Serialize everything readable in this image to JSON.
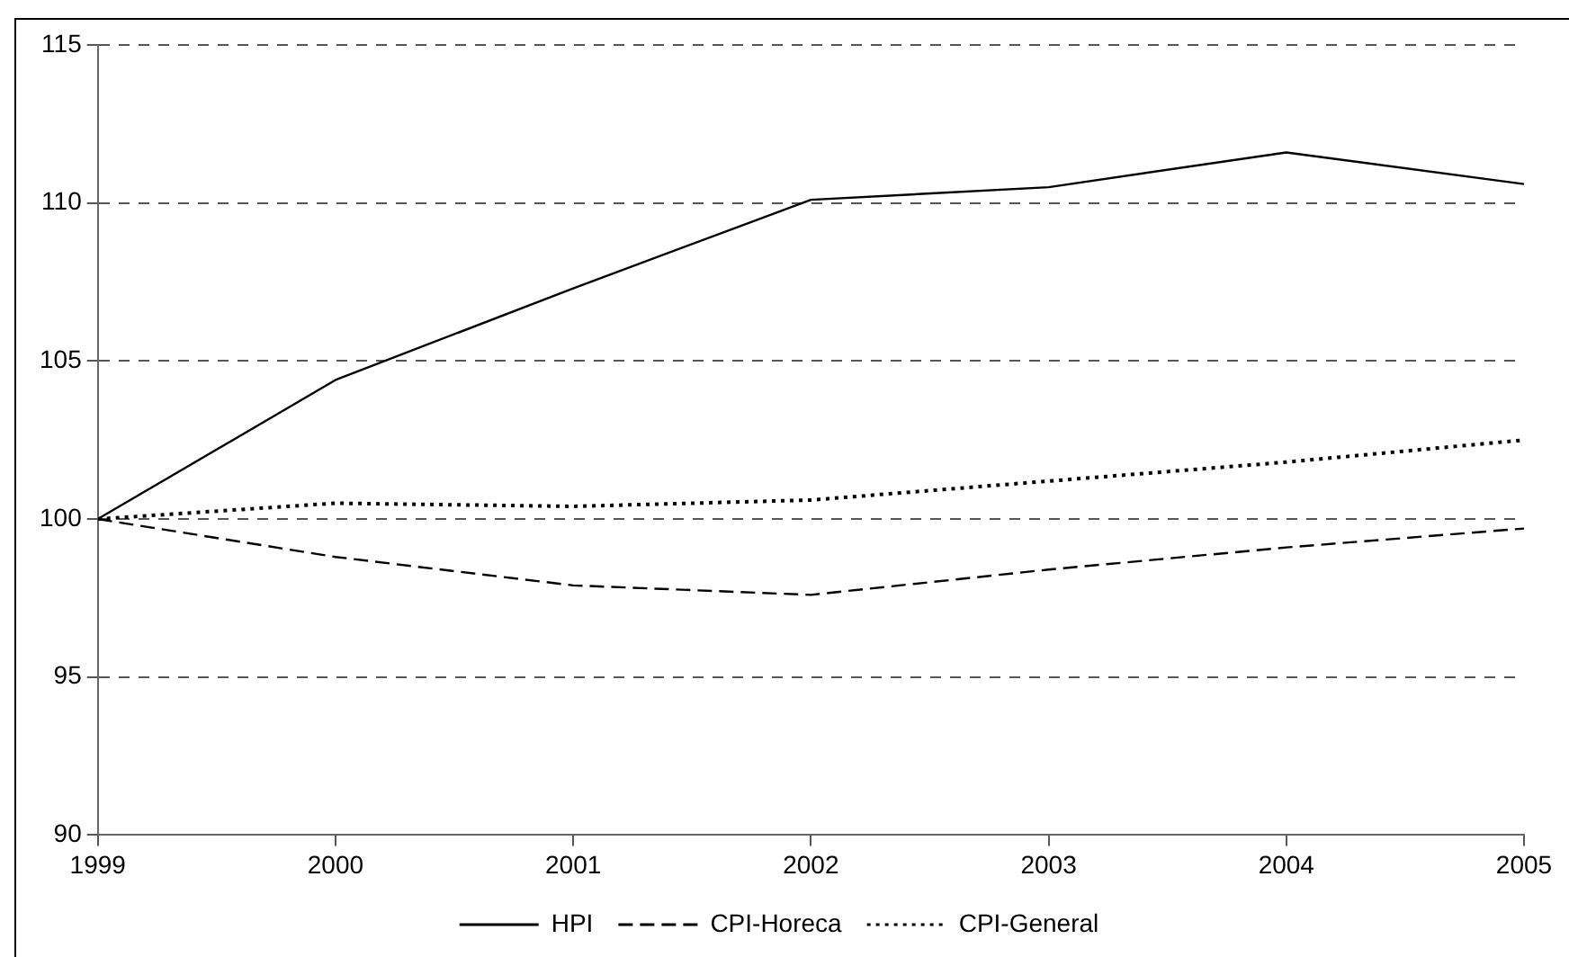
{
  "chart_data": {
    "type": "line",
    "x": [
      1999,
      2000,
      2001,
      2002,
      2003,
      2004,
      2005
    ],
    "xlim": [
      1999,
      2005
    ],
    "xticks": [
      1999,
      2000,
      2001,
      2002,
      2003,
      2004,
      2005
    ],
    "ylim": [
      90,
      115
    ],
    "yticks": [
      90,
      95,
      100,
      105,
      110,
      115
    ],
    "grid": "y",
    "legend": "bottom",
    "marker": "none",
    "series": [
      {
        "name": "HPI",
        "color": "#000000",
        "line_style": "solid",
        "values": [
          100,
          104.4,
          107.3,
          110.1,
          110.5,
          111.6,
          110.6
        ]
      },
      {
        "name": "CPI-Horeca",
        "color": "#000000",
        "line_style": "dashed",
        "values": [
          100,
          98.8,
          97.9,
          97.6,
          98.4,
          99.1,
          99.7
        ]
      },
      {
        "name": "CPI-General",
        "color": "#000000",
        "line_style": "dotted",
        "values": [
          100,
          100.5,
          100.4,
          100.6,
          101.2,
          101.8,
          102.5
        ]
      }
    ]
  }
}
